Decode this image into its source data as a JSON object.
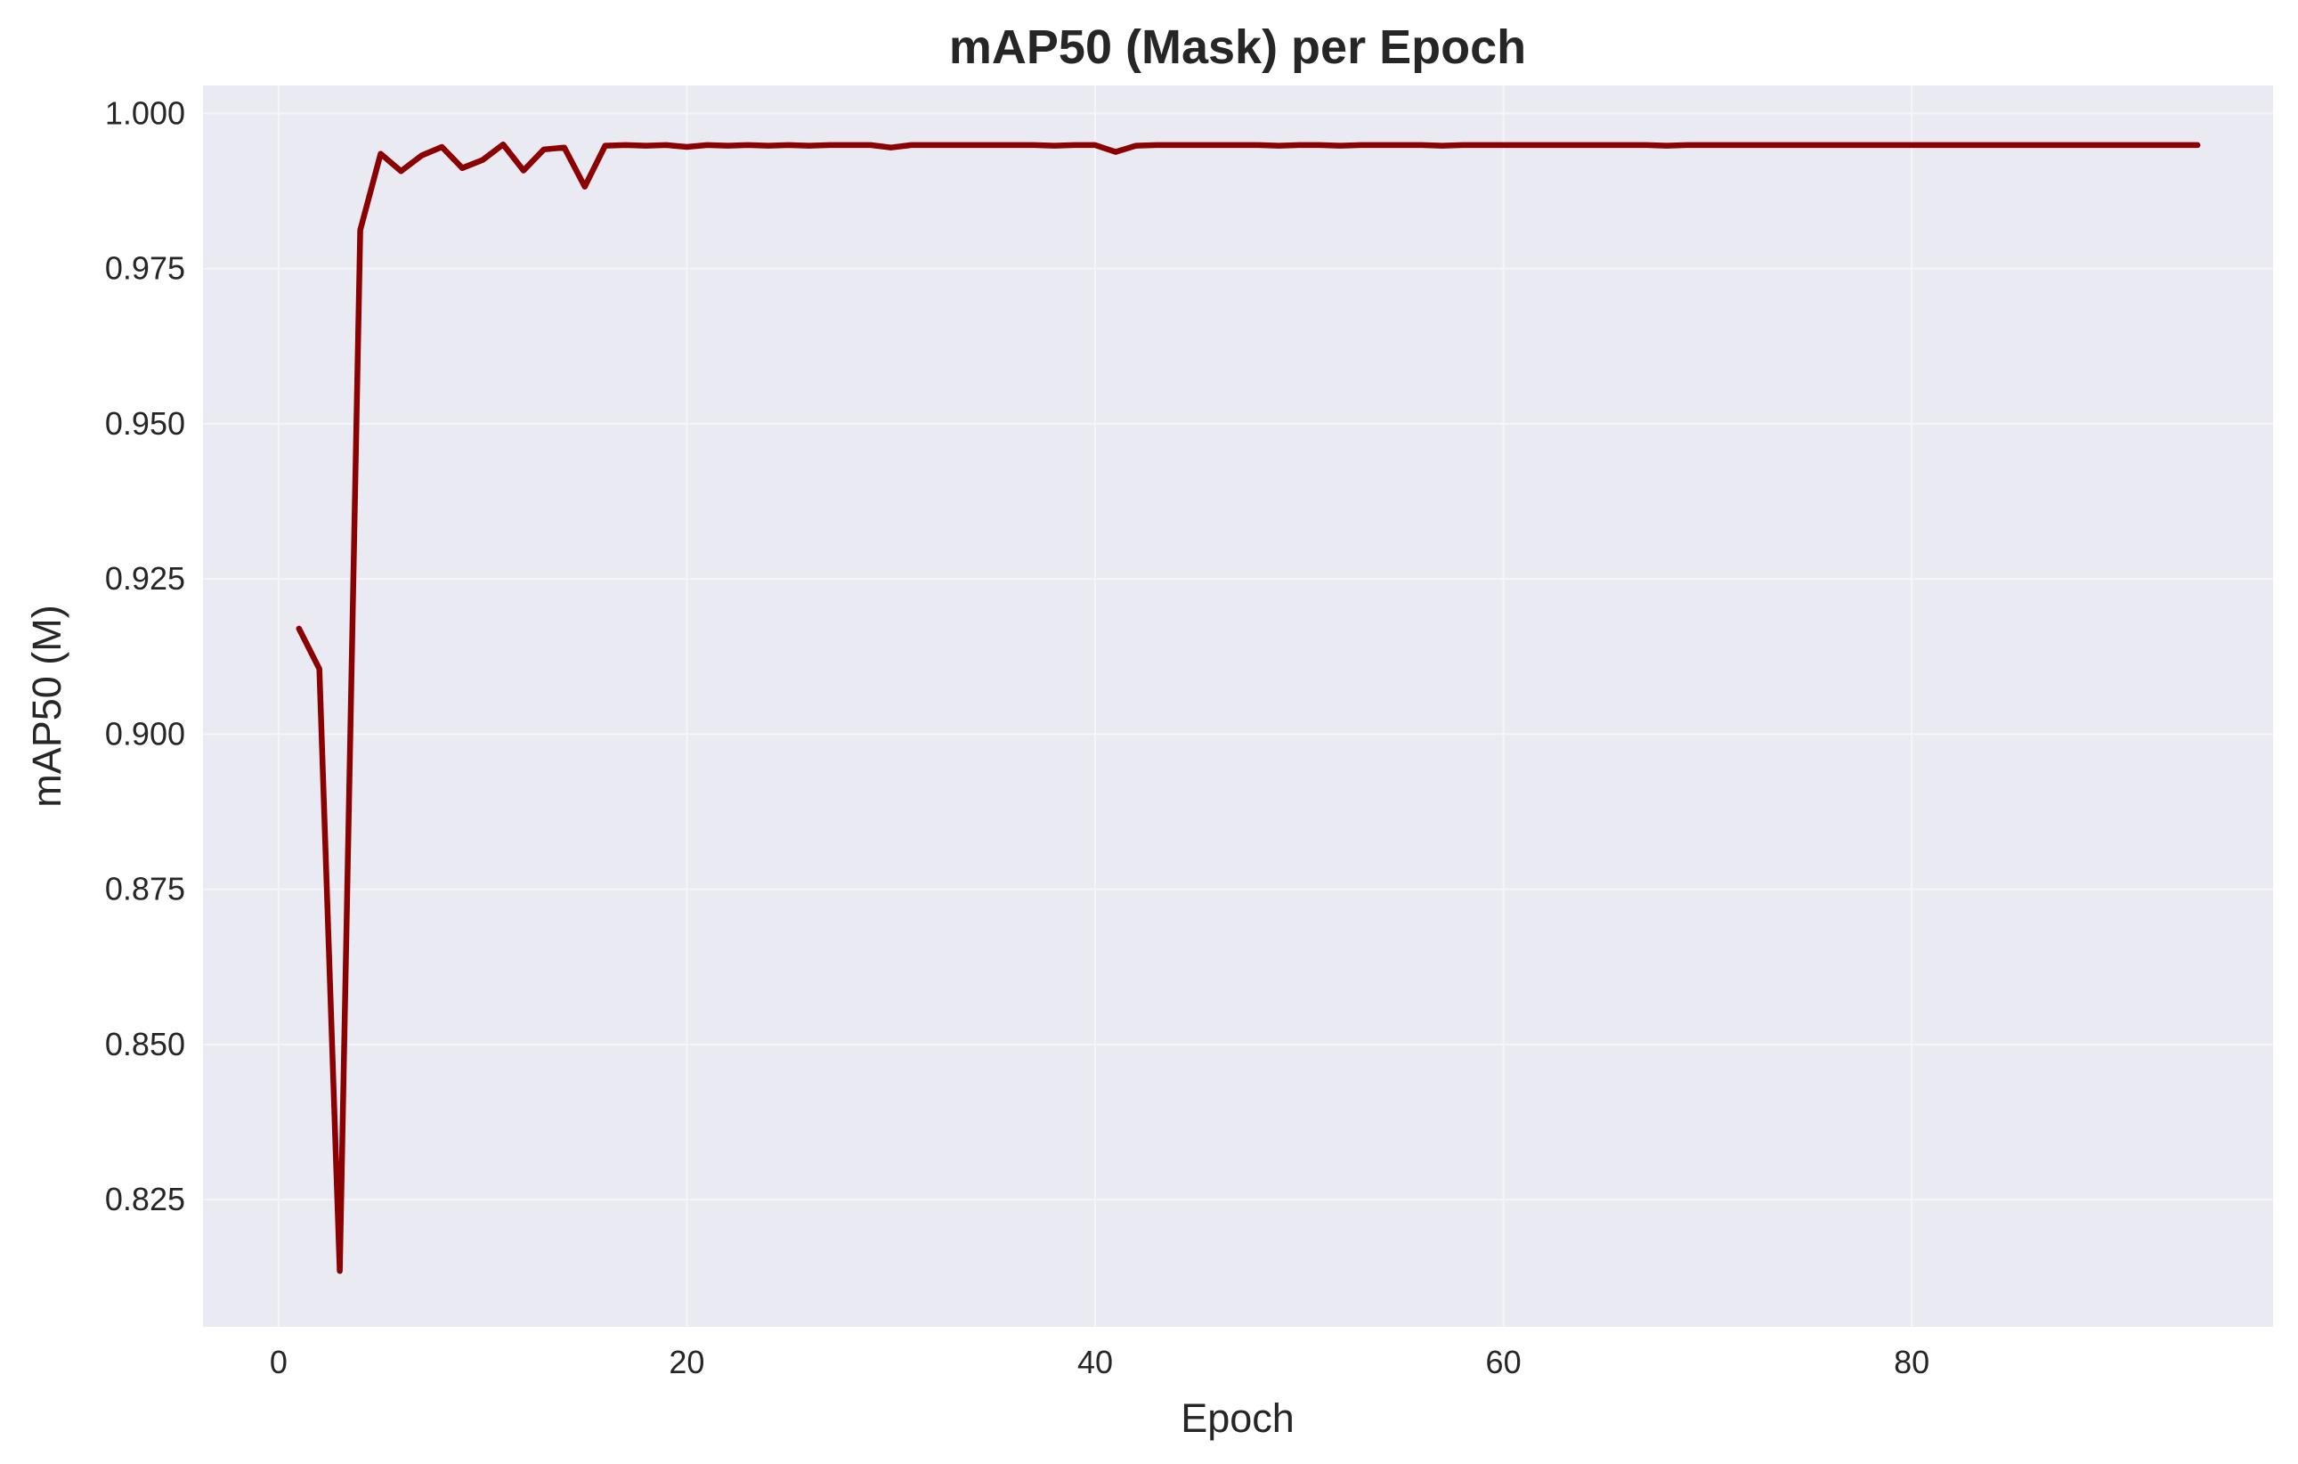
{
  "chart_data": {
    "type": "line",
    "title": "mAP50 (Mask) per Epoch",
    "xlabel": "Epoch",
    "ylabel": "mAP50 (M)",
    "xlim": [
      -3.7,
      97.7
    ],
    "ylim": [
      0.8045,
      1.0045
    ],
    "xticks": [
      0,
      20,
      40,
      60,
      80
    ],
    "yticks": [
      0.825,
      0.85,
      0.875,
      0.9,
      0.925,
      0.95,
      0.975,
      1.0
    ],
    "xtick_labels": [
      "0",
      "20",
      "40",
      "60",
      "80"
    ],
    "ytick_labels": [
      "0.825",
      "0.850",
      "0.875",
      "0.900",
      "0.925",
      "0.950",
      "0.975",
      "1.000"
    ],
    "grid": true,
    "legend": false,
    "colors": {
      "line": "#8b0000",
      "plot_bg": "#eaeaf2",
      "grid": "#f5f5f8"
    },
    "series": [
      {
        "x": [
          1,
          2,
          3,
          4,
          5,
          6,
          7,
          8,
          9,
          10,
          11,
          12,
          13,
          14,
          15,
          16,
          17,
          18,
          19,
          20,
          21,
          22,
          23,
          24,
          25,
          26,
          27,
          28,
          29,
          30,
          31,
          32,
          33,
          34,
          35,
          36,
          37,
          38,
          39,
          40,
          41,
          42,
          43,
          44,
          45,
          46,
          47,
          48,
          49,
          50,
          51,
          52,
          53,
          54,
          55,
          56,
          57,
          58,
          59,
          60,
          61,
          62,
          63,
          64,
          65,
          66,
          67,
          68,
          69,
          70,
          71,
          72,
          73,
          74,
          75,
          76,
          77,
          78,
          79,
          80,
          81,
          82,
          83,
          84,
          85,
          86,
          87,
          88,
          89,
          90,
          91,
          92,
          93,
          94
        ],
        "values": [
          0.917,
          0.9105,
          0.8135,
          0.9812,
          0.9935,
          0.9907,
          0.9932,
          0.9946,
          0.9912,
          0.9925,
          0.995,
          0.9908,
          0.9942,
          0.9945,
          0.9882,
          0.9948,
          0.9949,
          0.9948,
          0.9949,
          0.9946,
          0.9949,
          0.9948,
          0.9949,
          0.9948,
          0.9949,
          0.9948,
          0.9949,
          0.9949,
          0.9949,
          0.9945,
          0.9949,
          0.9949,
          0.9949,
          0.9949,
          0.9949,
          0.9949,
          0.9949,
          0.9948,
          0.9949,
          0.9949,
          0.9938,
          0.9948,
          0.9949,
          0.9949,
          0.9949,
          0.9949,
          0.9949,
          0.9949,
          0.9948,
          0.9949,
          0.9949,
          0.9948,
          0.9949,
          0.9949,
          0.9949,
          0.9949,
          0.9948,
          0.9949,
          0.9949,
          0.9949,
          0.9949,
          0.9949,
          0.9949,
          0.9949,
          0.9949,
          0.9949,
          0.9949,
          0.9948,
          0.9949,
          0.9949,
          0.9949,
          0.9949,
          0.9949,
          0.9949,
          0.9949,
          0.9949,
          0.9949,
          0.9949,
          0.9949,
          0.9949,
          0.9949,
          0.9949,
          0.9949,
          0.9949,
          0.9949,
          0.9949,
          0.9949,
          0.9949,
          0.9949,
          0.9949,
          0.9949,
          0.9949,
          0.9949,
          0.9949
        ]
      }
    ]
  }
}
